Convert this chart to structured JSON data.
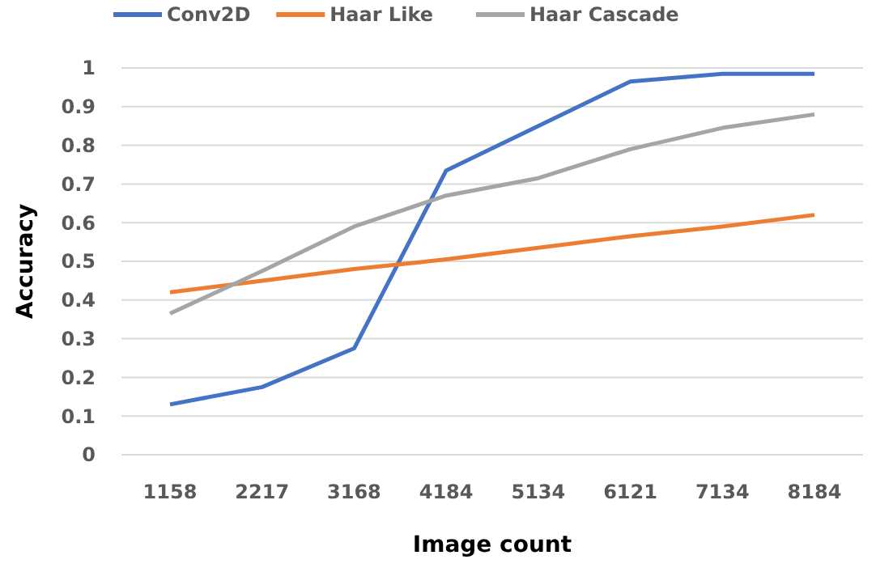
{
  "chart_data": {
    "type": "line",
    "xlabel": "Image count",
    "ylabel": "Accuracy",
    "categories": [
      "1158",
      "2217",
      "3168",
      "4184",
      "5134",
      "6121",
      "7134",
      "8184"
    ],
    "series": [
      {
        "name": "Conv2D",
        "color": "#4472c4",
        "values": [
          0.13,
          0.175,
          0.275,
          0.735,
          0.85,
          0.965,
          0.985,
          0.985
        ]
      },
      {
        "name": "Haar Like",
        "color": "#ed7d31",
        "values": [
          0.42,
          0.45,
          0.48,
          0.505,
          0.535,
          0.565,
          0.59,
          0.62
        ]
      },
      {
        "name": "Haar Cascade",
        "color": "#a5a5a5",
        "values": [
          0.365,
          0.475,
          0.59,
          0.67,
          0.715,
          0.79,
          0.845,
          0.88
        ]
      }
    ],
    "ylim": [
      0,
      1
    ],
    "yticks": [
      0,
      0.1,
      0.2,
      0.3,
      0.4,
      0.5,
      0.6,
      0.7,
      0.8,
      0.9,
      1
    ],
    "grid": "y",
    "legend": "top",
    "marker": "none",
    "line_style": "solid"
  }
}
